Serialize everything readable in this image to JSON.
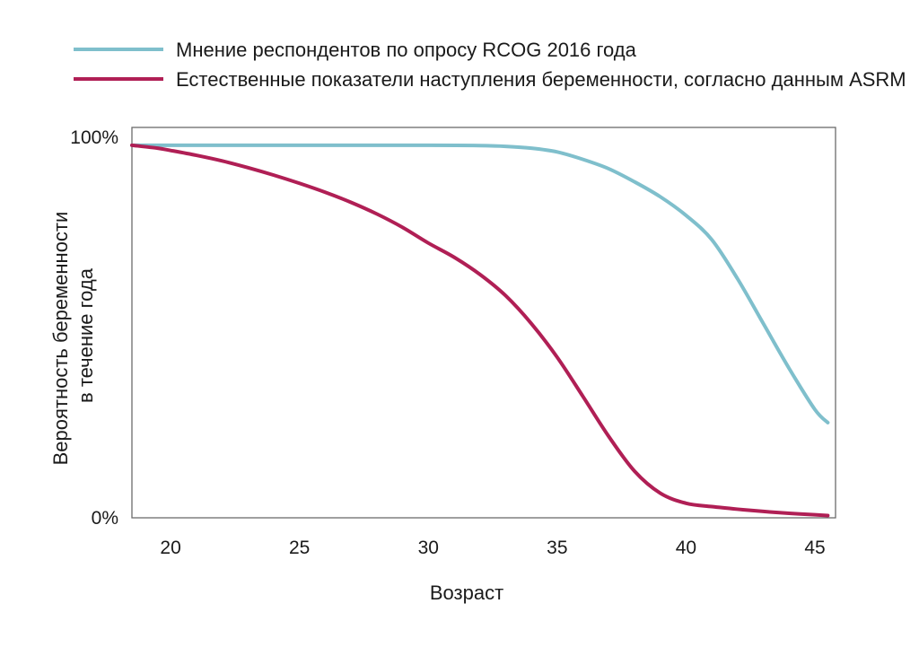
{
  "chart_data": {
    "type": "line",
    "xlabel": "Возраст",
    "ylabel_lines": [
      "Вероятность беременности",
      "в течение года"
    ],
    "xlim": [
      18.5,
      45.8
    ],
    "ylim": [
      0,
      100
    ],
    "x_ticks": [
      20,
      25,
      30,
      35,
      40,
      45
    ],
    "y_ticks": [
      {
        "value": 0,
        "label": "0%"
      },
      {
        "value": 100,
        "label": "100%"
      }
    ],
    "grid": false,
    "legend_position": "top-left",
    "series": [
      {
        "name": "Мнение респондентов по опросу RCOG 2016 года",
        "color": "#7fbfcc",
        "points": [
          [
            18.5,
            99.8
          ],
          [
            20,
            99.8
          ],
          [
            25,
            99.8
          ],
          [
            30,
            99.8
          ],
          [
            32,
            99.7
          ],
          [
            33,
            99.5
          ],
          [
            34,
            99
          ],
          [
            35,
            98
          ],
          [
            36,
            96
          ],
          [
            37,
            93.5
          ],
          [
            38,
            90
          ],
          [
            39,
            86
          ],
          [
            40,
            81
          ],
          [
            41,
            74.5
          ],
          [
            42,
            64
          ],
          [
            43,
            52
          ],
          [
            44,
            40
          ],
          [
            45,
            29
          ],
          [
            45.5,
            25.5
          ]
        ]
      },
      {
        "name": "Естественные показатели наступления беременности, согласно данным ASRM",
        "color": "#b01f55",
        "points": [
          [
            18.5,
            99.8
          ],
          [
            19.5,
            99
          ],
          [
            20,
            98.4
          ],
          [
            21,
            97.1
          ],
          [
            22,
            95.6
          ],
          [
            23,
            93.8
          ],
          [
            24,
            91.8
          ],
          [
            25,
            89.6
          ],
          [
            26,
            87.2
          ],
          [
            27,
            84.5
          ],
          [
            28,
            81.4
          ],
          [
            29,
            77.8
          ],
          [
            30,
            73.6
          ],
          [
            31,
            69.8
          ],
          [
            32,
            65.2
          ],
          [
            33,
            59.5
          ],
          [
            34,
            52
          ],
          [
            35,
            43
          ],
          [
            36,
            32.5
          ],
          [
            37,
            21.8
          ],
          [
            38,
            12.5
          ],
          [
            39,
            6.6
          ],
          [
            40,
            3.9
          ],
          [
            41,
            3
          ],
          [
            42,
            2.3
          ],
          [
            43,
            1.7
          ],
          [
            44,
            1.2
          ],
          [
            45,
            0.8
          ],
          [
            45.5,
            0.6
          ]
        ]
      }
    ]
  }
}
